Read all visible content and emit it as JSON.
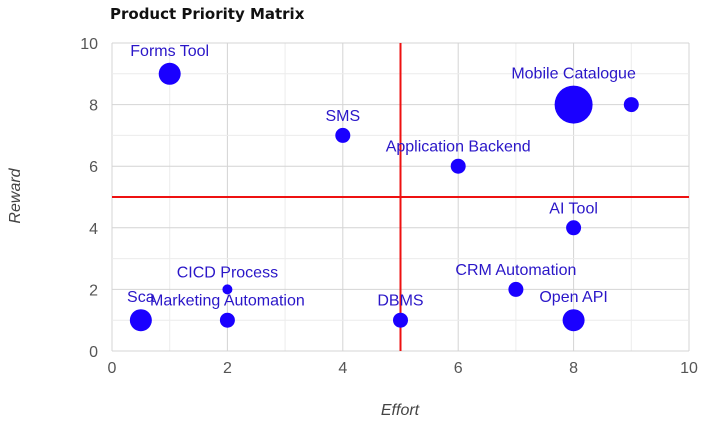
{
  "chart_data": {
    "type": "scatter",
    "title": "Product Priority Matrix",
    "xlabel": "Effort",
    "ylabel": "Reward",
    "xlim": [
      0,
      10
    ],
    "ylim": [
      0,
      10
    ],
    "x_ticks": [
      0,
      2,
      4,
      6,
      8,
      10
    ],
    "y_ticks": [
      0,
      2,
      4,
      6,
      8,
      10
    ],
    "grid": true,
    "threshold_lines": {
      "x": 5,
      "y": 5,
      "color": "#ee1111"
    },
    "point_color": "#1a00ff",
    "label_color": "#2a16c8",
    "points": [
      {
        "label": "Forms Tool",
        "x": 1,
        "y": 9,
        "size": "large"
      },
      {
        "label": "SMS",
        "x": 4,
        "y": 7,
        "size": "small"
      },
      {
        "label": "Mobile Catalogue",
        "x": 8,
        "y": 8,
        "size": "xlarge"
      },
      {
        "label": "",
        "x": 9,
        "y": 8,
        "size": "small"
      },
      {
        "label": "Application Backend",
        "x": 6,
        "y": 6,
        "size": "small"
      },
      {
        "label": "AI Tool",
        "x": 8,
        "y": 4,
        "size": "small"
      },
      {
        "label": "CICD Process",
        "x": 2,
        "y": 2,
        "size": "tiny"
      },
      {
        "label": "Sca",
        "x": 0.5,
        "y": 1,
        "size": "large"
      },
      {
        "label": "Marketing Automation",
        "x": 2,
        "y": 1,
        "size": "small"
      },
      {
        "label": "DBMS",
        "x": 5,
        "y": 1,
        "size": "small"
      },
      {
        "label": "CRM Automation",
        "x": 7,
        "y": 2,
        "size": "small"
      },
      {
        "label": "Open API",
        "x": 8,
        "y": 1,
        "size": "large"
      }
    ]
  }
}
